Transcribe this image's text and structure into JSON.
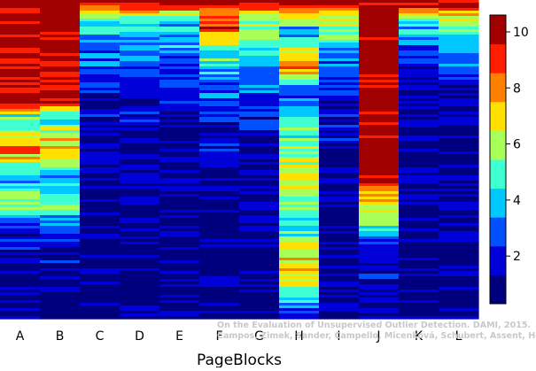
{
  "chart_data": {
    "type": "heatmap",
    "xlabel": "PageBlocks",
    "ylabel": "",
    "columns": [
      "A",
      "B",
      "C",
      "D",
      "E",
      "F",
      "G",
      "H",
      "I",
      "J",
      "K",
      "L"
    ],
    "colorbar": {
      "min": 0.3,
      "max": 10.6,
      "ticks": [
        2,
        4,
        6,
        8,
        10
      ],
      "palette": [
        "#00007F",
        "#0000D8",
        "#0050FF",
        "#00C8FF",
        "#40FFD0",
        "#A8FF58",
        "#FFE000",
        "#FF8000",
        "#FF1E00",
        "#A00000"
      ]
    },
    "column_profiles": [
      {
        "column": "A",
        "segments": [
          [
            0.0,
            10.3
          ],
          [
            0.33,
            9.6
          ],
          [
            0.36,
            5.0
          ],
          [
            0.48,
            8.0
          ],
          [
            0.56,
            3.0
          ],
          [
            0.62,
            5.5
          ],
          [
            0.72,
            2.4
          ],
          [
            0.82,
            1.4
          ],
          [
            1.0,
            0.8
          ]
        ]
      },
      {
        "column": "B",
        "segments": [
          [
            0.0,
            10.3
          ],
          [
            0.32,
            9.7
          ],
          [
            0.36,
            4.5
          ],
          [
            0.48,
            7.6
          ],
          [
            0.56,
            3.2
          ],
          [
            0.64,
            5.6
          ],
          [
            0.74,
            2.3
          ],
          [
            0.82,
            1.4
          ],
          [
            1.0,
            0.8
          ]
        ]
      },
      {
        "column": "C",
        "segments": [
          [
            0.0,
            10.4
          ],
          [
            0.02,
            9.0
          ],
          [
            0.05,
            5.0
          ],
          [
            0.12,
            3.6
          ],
          [
            0.22,
            2.4
          ],
          [
            0.4,
            1.2
          ],
          [
            1.0,
            0.7
          ]
        ]
      },
      {
        "column": "D",
        "segments": [
          [
            0.0,
            10.5
          ],
          [
            0.03,
            8.5
          ],
          [
            0.06,
            4.5
          ],
          [
            0.14,
            3.2
          ],
          [
            0.24,
            2.0
          ],
          [
            0.42,
            1.1
          ],
          [
            1.0,
            0.7
          ]
        ]
      },
      {
        "column": "E",
        "segments": [
          [
            0.0,
            10.5
          ],
          [
            0.02,
            9.0
          ],
          [
            0.05,
            4.6
          ],
          [
            0.12,
            3.6
          ],
          [
            0.25,
            2.2
          ],
          [
            0.4,
            1.1
          ],
          [
            1.0,
            0.7
          ]
        ]
      },
      {
        "column": "F",
        "segments": [
          [
            0.0,
            10.6
          ],
          [
            0.03,
            7.0
          ],
          [
            0.08,
            9.0
          ],
          [
            0.15,
            5.0
          ],
          [
            0.26,
            3.2
          ],
          [
            0.4,
            1.8
          ],
          [
            0.6,
            1.0
          ],
          [
            1.0,
            0.7
          ]
        ]
      },
      {
        "column": "G",
        "segments": [
          [
            0.0,
            10.6
          ],
          [
            0.02,
            8.0
          ],
          [
            0.06,
            6.0
          ],
          [
            0.14,
            4.8
          ],
          [
            0.24,
            3.4
          ],
          [
            0.35,
            2.0
          ],
          [
            0.5,
            1.2
          ],
          [
            1.0,
            0.8
          ]
        ]
      },
      {
        "column": "H",
        "segments": [
          [
            0.0,
            10.6
          ],
          [
            0.1,
            3.0
          ],
          [
            0.2,
            9.0
          ],
          [
            0.28,
            2.5
          ],
          [
            0.4,
            5.0
          ],
          [
            0.55,
            6.5
          ],
          [
            0.7,
            4.5
          ],
          [
            0.85,
            8.0
          ],
          [
            1.0,
            1.5
          ]
        ]
      },
      {
        "column": "I",
        "segments": [
          [
            0.0,
            10.6
          ],
          [
            0.04,
            7.0
          ],
          [
            0.1,
            5.0
          ],
          [
            0.2,
            3.0
          ],
          [
            0.3,
            2.2
          ],
          [
            0.45,
            1.3
          ],
          [
            1.0,
            0.8
          ]
        ]
      },
      {
        "column": "J",
        "segments": [
          [
            0.0,
            10.6
          ],
          [
            0.55,
            10.0
          ],
          [
            0.6,
            8.5
          ],
          [
            0.68,
            6.0
          ],
          [
            0.74,
            3.5
          ],
          [
            0.8,
            1.8
          ],
          [
            1.0,
            1.2
          ]
        ]
      },
      {
        "column": "K",
        "segments": [
          [
            0.0,
            10.5
          ],
          [
            0.03,
            8.0
          ],
          [
            0.06,
            4.5
          ],
          [
            0.12,
            3.2
          ],
          [
            0.22,
            2.0
          ],
          [
            0.4,
            1.1
          ],
          [
            1.0,
            0.7
          ]
        ]
      },
      {
        "column": "L",
        "segments": [
          [
            0.0,
            10.5
          ],
          [
            0.06,
            6.0
          ],
          [
            0.12,
            3.8
          ],
          [
            0.22,
            2.4
          ],
          [
            0.4,
            1.3
          ],
          [
            1.0,
            0.8
          ]
        ]
      }
    ]
  },
  "watermark": {
    "line1": "On the Evaluation of Unsupervised Outlier Detection. DAMI, 2015.",
    "line2": "Campos, Zimek, Sander, Campello, Micenková, Schubert, Assent, Houle"
  }
}
